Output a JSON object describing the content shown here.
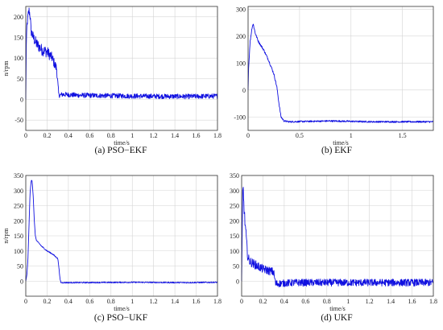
{
  "chart_data": [
    {
      "type": "line",
      "caption": "(a) PSO−EKF",
      "xlabel": "time/s",
      "ylabel": "n/rpm",
      "xlim": [
        0,
        1.8
      ],
      "ylim": [
        -75,
        225
      ],
      "xticks": [
        "0",
        "0.2",
        "0.4",
        "0.6",
        "0.8",
        "1",
        "1.2",
        "1.4",
        "1.6",
        "1.8"
      ],
      "yticks": [
        "-50",
        "0",
        "50",
        "100",
        "150",
        "200"
      ],
      "grid": true,
      "series": [
        {
          "color": "#1010e0",
          "x": [
            0,
            0.005,
            0.01,
            0.02,
            0.03,
            0.04,
            0.05,
            0.07,
            0.1,
            0.15,
            0.2,
            0.25,
            0.27,
            0.29,
            0.3,
            0.31,
            0.35,
            0.5,
            1.0,
            1.5,
            1.8
          ],
          "y": [
            0,
            130,
            175,
            200,
            215,
            205,
            165,
            150,
            135,
            120,
            115,
            100,
            85,
            75,
            40,
            10,
            12,
            10,
            8,
            7,
            8
          ],
          "noise": [
            0,
            0,
            8,
            12,
            12,
            12,
            12,
            14,
            14,
            14,
            14,
            12,
            12,
            12,
            10,
            6,
            6,
            6,
            6,
            6,
            6
          ]
        }
      ]
    },
    {
      "type": "line",
      "caption": "(b) EKF",
      "xlabel": "time/s",
      "ylabel": "",
      "xlim": [
        0,
        1.8
      ],
      "ylim": [
        -150,
        310
      ],
      "xticks": [
        "0",
        "0.5",
        "1",
        "1.5"
      ],
      "yticks": [
        "-100",
        "0",
        "100",
        "200",
        "300"
      ],
      "grid": true,
      "series": [
        {
          "color": "#1010e0",
          "x": [
            0,
            0.005,
            0.02,
            0.04,
            0.05,
            0.07,
            0.1,
            0.15,
            0.2,
            0.25,
            0.28,
            0.3,
            0.32,
            0.35,
            0.4,
            0.8,
            1.2,
            1.8
          ],
          "y": [
            0,
            80,
            180,
            235,
            245,
            210,
            180,
            150,
            110,
            60,
            10,
            -50,
            -100,
            -115,
            -118,
            -115,
            -118,
            -118
          ],
          "noise": [
            0,
            0,
            4,
            4,
            4,
            4,
            4,
            4,
            4,
            4,
            4,
            4,
            4,
            3,
            3,
            3,
            3,
            3
          ]
        }
      ]
    },
    {
      "type": "line",
      "caption": "(c) PSO−UKF",
      "xlabel": "time/s",
      "ylabel": "n/rpm",
      "xlim": [
        0,
        1.8
      ],
      "ylim": [
        -50,
        350
      ],
      "xticks": [
        "0",
        "0.2",
        "0.4",
        "0.6",
        "0.8",
        "1",
        "1.2",
        "1.4",
        "1.6",
        "1.8"
      ],
      "yticks": [
        "0",
        "50",
        "100",
        "150",
        "200",
        "250",
        "300",
        "350"
      ],
      "grid": true,
      "series": [
        {
          "color": "#1010e0",
          "x": [
            0,
            0.01,
            0.02,
            0.03,
            0.04,
            0.05,
            0.055,
            0.06,
            0.07,
            0.08,
            0.09,
            0.1,
            0.15,
            0.2,
            0.25,
            0.3,
            0.31,
            0.32,
            0.33,
            0.5,
            1.0,
            1.5,
            1.8
          ],
          "y": [
            0,
            20,
            70,
            180,
            290,
            330,
            335,
            330,
            280,
            200,
            150,
            135,
            115,
            100,
            90,
            75,
            50,
            10,
            -5,
            -5,
            -4,
            -5,
            -4
          ],
          "noise": [
            0,
            0,
            0,
            0,
            0,
            0,
            0,
            0,
            0,
            1,
            1,
            1,
            2,
            2,
            2,
            2,
            2,
            2,
            2,
            2,
            2,
            2,
            2
          ]
        }
      ]
    },
    {
      "type": "line",
      "caption": "(d) UKF",
      "xlabel": "time/s",
      "ylabel": "",
      "xlim": [
        0,
        1.8
      ],
      "ylim": [
        -50,
        350
      ],
      "xticks": [
        "0",
        "0.2",
        "0.4",
        "0.6",
        "0.8",
        "1",
        "1.2",
        "1.4",
        "1.6",
        "1.8"
      ],
      "yticks": [
        "0",
        "50",
        "100",
        "150",
        "200",
        "250",
        "300",
        "350"
      ],
      "grid": true,
      "series": [
        {
          "color": "#1010e0",
          "x": [
            0,
            0.005,
            0.01,
            0.015,
            0.02,
            0.03,
            0.04,
            0.05,
            0.06,
            0.08,
            0.1,
            0.15,
            0.2,
            0.25,
            0.3,
            0.32,
            0.35,
            0.5,
            1.0,
            1.5,
            1.8
          ],
          "y": [
            0,
            150,
            290,
            305,
            260,
            200,
            160,
            110,
            75,
            65,
            60,
            50,
            40,
            35,
            30,
            -10,
            -8,
            -5,
            -5,
            -5,
            -5
          ],
          "noise": [
            0,
            0,
            20,
            20,
            20,
            20,
            18,
            18,
            16,
            16,
            15,
            15,
            14,
            14,
            14,
            14,
            12,
            12,
            12,
            12,
            12
          ]
        }
      ]
    }
  ]
}
